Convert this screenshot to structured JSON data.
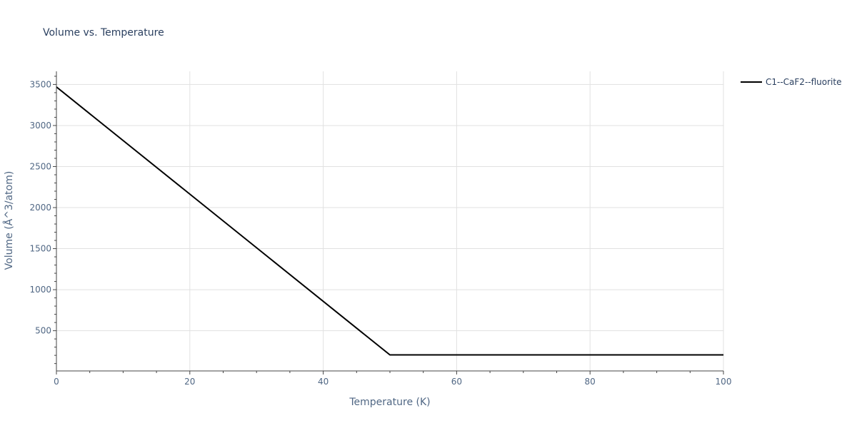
{
  "chart_data": {
    "type": "line",
    "title": "Volume vs. Temperature",
    "xlabel": "Temperature (K)",
    "ylabel": "Volume (Å^3/atom)",
    "xlim": [
      0,
      100
    ],
    "ylim": [
      10,
      3660
    ],
    "xticks": [
      0,
      20,
      40,
      60,
      80,
      100
    ],
    "yticks": [
      500,
      1000,
      1500,
      2000,
      2500,
      3000,
      3500
    ],
    "grid": true,
    "legend_position": "top-right",
    "series": [
      {
        "name": "C1--CaF2--fluorite",
        "color": "#000000",
        "x": [
          0,
          50,
          100
        ],
        "y": [
          3470,
          205,
          205
        ]
      }
    ]
  }
}
